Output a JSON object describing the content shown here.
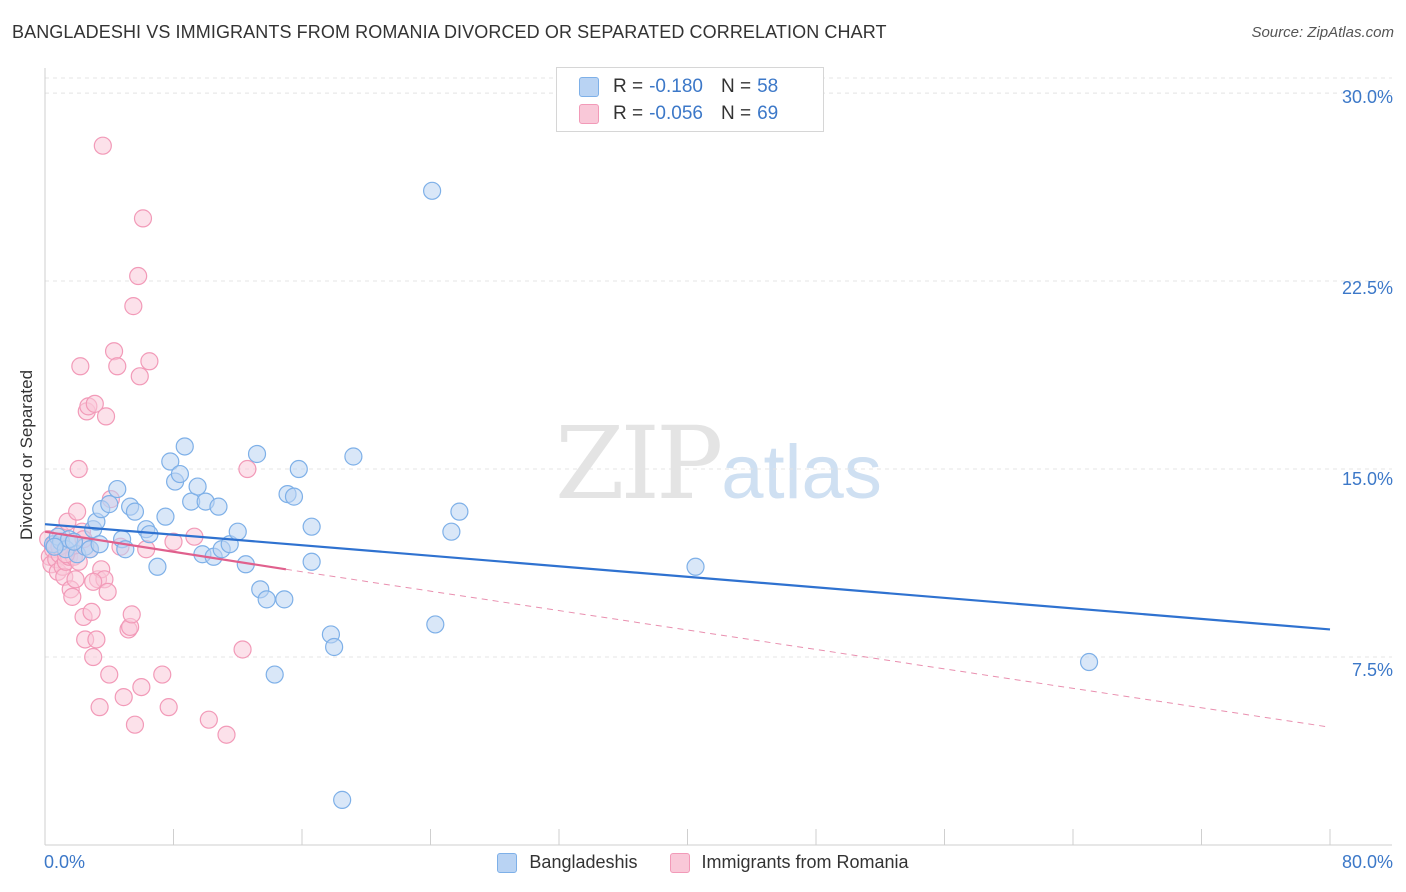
{
  "title": "BANGLADESHI VS IMMIGRANTS FROM ROMANIA DIVORCED OR SEPARATED CORRELATION CHART",
  "source": "Source: ZipAtlas.com",
  "watermark": {
    "zip": "ZIP",
    "atlas": "atlas"
  },
  "legend": {
    "r_label": "R =",
    "n_label": "N =",
    "series": [
      {
        "r": "-0.180",
        "n": "58"
      },
      {
        "r": "-0.056",
        "n": "69"
      }
    ]
  },
  "chart_data": {
    "type": "scatter",
    "title": "BANGLADESHI VS IMMIGRANTS FROM ROMANIA DIVORCED OR SEPARATED CORRELATION CHART",
    "xlabel": "",
    "ylabel": "Divorced or Separated",
    "xlim": [
      0,
      80
    ],
    "ylim": [
      0,
      31
    ],
    "x_tick_labels": [
      "0.0%",
      "80.0%"
    ],
    "y_ticks": [
      7.5,
      15.0,
      22.5,
      30.0
    ],
    "y_tick_labels": [
      "7.5%",
      "15.0%",
      "22.5%",
      "30.0%"
    ],
    "series": [
      {
        "name": "Bangladeshis",
        "color": "#7eb0e8",
        "fill": "#b9d3f3",
        "line_color": "#2f72d0",
        "trend": {
          "x0": 0,
          "y0": 12.8,
          "x1": 80,
          "y1": 8.6
        },
        "points": [
          [
            0.5,
            12.0
          ],
          [
            0.8,
            12.3
          ],
          [
            1.0,
            12.1
          ],
          [
            1.3,
            11.8
          ],
          [
            1.5,
            12.2
          ],
          [
            2.0,
            11.6
          ],
          [
            2.5,
            11.9
          ],
          [
            2.8,
            11.8
          ],
          [
            3.0,
            12.6
          ],
          [
            3.2,
            12.9
          ],
          [
            3.5,
            13.4
          ],
          [
            4.0,
            13.6
          ],
          [
            4.5,
            14.2
          ],
          [
            4.8,
            12.2
          ],
          [
            5.3,
            13.5
          ],
          [
            5.6,
            13.3
          ],
          [
            5.0,
            11.8
          ],
          [
            6.3,
            12.6
          ],
          [
            6.5,
            12.4
          ],
          [
            7.0,
            11.1
          ],
          [
            7.5,
            13.1
          ],
          [
            7.8,
            15.3
          ],
          [
            8.1,
            14.5
          ],
          [
            8.4,
            14.8
          ],
          [
            8.7,
            15.9
          ],
          [
            9.1,
            13.7
          ],
          [
            9.5,
            14.3
          ],
          [
            9.8,
            11.6
          ],
          [
            10.0,
            13.7
          ],
          [
            10.5,
            11.5
          ],
          [
            10.8,
            13.5
          ],
          [
            11.0,
            11.8
          ],
          [
            11.5,
            12.0
          ],
          [
            12.0,
            12.5
          ],
          [
            12.5,
            11.2
          ],
          [
            13.2,
            15.6
          ],
          [
            13.4,
            10.2
          ],
          [
            13.8,
            9.8
          ],
          [
            14.3,
            6.8
          ],
          [
            14.9,
            9.8
          ],
          [
            15.1,
            14.0
          ],
          [
            15.5,
            13.9
          ],
          [
            15.8,
            15.0
          ],
          [
            16.6,
            12.7
          ],
          [
            16.6,
            11.3
          ],
          [
            17.8,
            8.4
          ],
          [
            18.0,
            7.9
          ],
          [
            18.5,
            1.8
          ],
          [
            19.2,
            15.5
          ],
          [
            24.1,
            26.1
          ],
          [
            24.3,
            8.8
          ],
          [
            25.3,
            12.5
          ],
          [
            25.8,
            13.3
          ],
          [
            40.5,
            11.1
          ],
          [
            65.0,
            7.3
          ],
          [
            0.6,
            11.9
          ],
          [
            1.8,
            12.1
          ],
          [
            3.4,
            12.0
          ]
        ]
      },
      {
        "name": "Immigrants from Romania",
        "color": "#f29ab8",
        "fill": "#f9c8d8",
        "line_color": "#e0608d",
        "trend": {
          "x0": 0,
          "y0": 12.5,
          "x1": 15,
          "y1": 11.0
        },
        "trend_dashed": {
          "x0": 15,
          "y0": 11.0,
          "x1": 80,
          "y1": 4.7
        },
        "points": [
          [
            0.2,
            12.2
          ],
          [
            0.3,
            11.5
          ],
          [
            0.4,
            11.2
          ],
          [
            0.5,
            11.8
          ],
          [
            0.6,
            12.0
          ],
          [
            0.7,
            11.4
          ],
          [
            0.8,
            10.9
          ],
          [
            0.9,
            11.6
          ],
          [
            1.0,
            12.4
          ],
          [
            1.1,
            11.1
          ],
          [
            1.2,
            10.7
          ],
          [
            1.3,
            11.3
          ],
          [
            1.4,
            12.9
          ],
          [
            1.5,
            11.5
          ],
          [
            1.6,
            10.2
          ],
          [
            1.7,
            9.9
          ],
          [
            1.8,
            11.5
          ],
          [
            1.9,
            10.6
          ],
          [
            2.0,
            13.3
          ],
          [
            2.1,
            15.0
          ],
          [
            2.2,
            19.1
          ],
          [
            2.3,
            12.5
          ],
          [
            2.4,
            9.1
          ],
          [
            2.5,
            8.2
          ],
          [
            2.6,
            17.3
          ],
          [
            2.7,
            17.5
          ],
          [
            2.8,
            11.8
          ],
          [
            2.9,
            9.3
          ],
          [
            3.0,
            7.5
          ],
          [
            3.1,
            17.6
          ],
          [
            3.2,
            8.2
          ],
          [
            3.3,
            10.6
          ],
          [
            3.4,
            5.5
          ],
          [
            3.5,
            11.0
          ],
          [
            3.6,
            27.9
          ],
          [
            3.7,
            10.6
          ],
          [
            3.8,
            17.1
          ],
          [
            3.9,
            10.1
          ],
          [
            4.0,
            6.8
          ],
          [
            4.1,
            13.8
          ],
          [
            4.3,
            19.7
          ],
          [
            4.5,
            19.1
          ],
          [
            4.7,
            11.9
          ],
          [
            4.9,
            5.9
          ],
          [
            5.2,
            8.6
          ],
          [
            5.3,
            8.7
          ],
          [
            5.4,
            9.2
          ],
          [
            5.5,
            21.5
          ],
          [
            5.6,
            4.8
          ],
          [
            5.8,
            22.7
          ],
          [
            5.9,
            18.7
          ],
          [
            6.0,
            6.3
          ],
          [
            6.1,
            25.0
          ],
          [
            6.3,
            11.8
          ],
          [
            6.5,
            19.3
          ],
          [
            7.3,
            6.8
          ],
          [
            7.7,
            5.5
          ],
          [
            8.0,
            12.1
          ],
          [
            9.3,
            12.3
          ],
          [
            10.2,
            5.0
          ],
          [
            11.3,
            4.4
          ],
          [
            12.3,
            7.8
          ],
          [
            12.6,
            15.0
          ],
          [
            2.1,
            11.3
          ],
          [
            1.6,
            12.0
          ],
          [
            0.9,
            11.9
          ],
          [
            1.3,
            11.6
          ],
          [
            3.0,
            10.5
          ],
          [
            2.4,
            12.2
          ]
        ]
      }
    ]
  }
}
